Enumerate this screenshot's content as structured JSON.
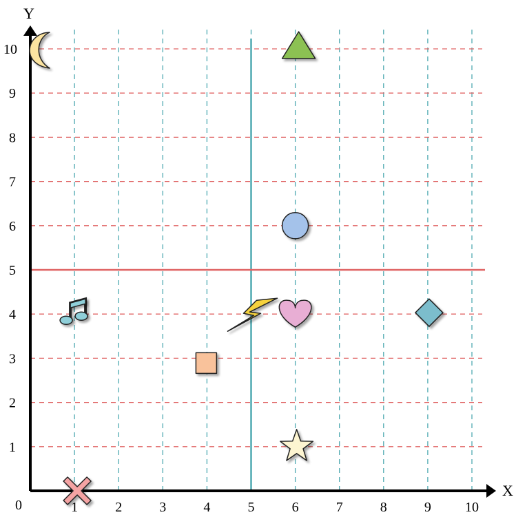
{
  "chart_data": {
    "type": "scatter",
    "title": "",
    "xlabel": "X",
    "ylabel": "Y",
    "origin_label": "0",
    "xlim": [
      0,
      10
    ],
    "ylim": [
      0,
      10
    ],
    "x_ticks": [
      "1",
      "2",
      "3",
      "4",
      "5",
      "6",
      "7",
      "8",
      "9",
      "10"
    ],
    "y_ticks": [
      "1",
      "2",
      "3",
      "4",
      "5",
      "6",
      "7",
      "8",
      "9",
      "10"
    ],
    "grid": true,
    "grid_colors": {
      "vertical": "#4fa9b1",
      "horizontal": "#e06464"
    },
    "reference_lines": [
      {
        "axis": "x",
        "value": 5,
        "color": "#4fa9b1"
      },
      {
        "axis": "y",
        "value": 5,
        "color": "#e06464"
      }
    ],
    "points": [
      {
        "shape": "moon-icon",
        "x": 0,
        "y": 10,
        "color": "#fbe3a0"
      },
      {
        "shape": "triangle-icon",
        "x": 6,
        "y": 10,
        "color": "#8cc152"
      },
      {
        "shape": "circle-icon",
        "x": 6,
        "y": 6,
        "color": "#a4c2ea"
      },
      {
        "shape": "music-note-icon",
        "x": 1,
        "y": 4,
        "color": "#8fcfd9"
      },
      {
        "shape": "lightning-icon",
        "x": 5,
        "y": 4,
        "color": "#f6d23c"
      },
      {
        "shape": "heart-icon",
        "x": 6,
        "y": 4,
        "color": "#e8aed4"
      },
      {
        "shape": "diamond-icon",
        "x": 9,
        "y": 4,
        "color": "#7bbdcc"
      },
      {
        "shape": "square-icon",
        "x": 4,
        "y": 3,
        "color": "#f9c29b"
      },
      {
        "shape": "star-icon",
        "x": 6,
        "y": 1,
        "color": "#fdf5d1"
      },
      {
        "shape": "cross-icon",
        "x": 1,
        "y": 0,
        "color": "#f4a3a3"
      }
    ]
  }
}
